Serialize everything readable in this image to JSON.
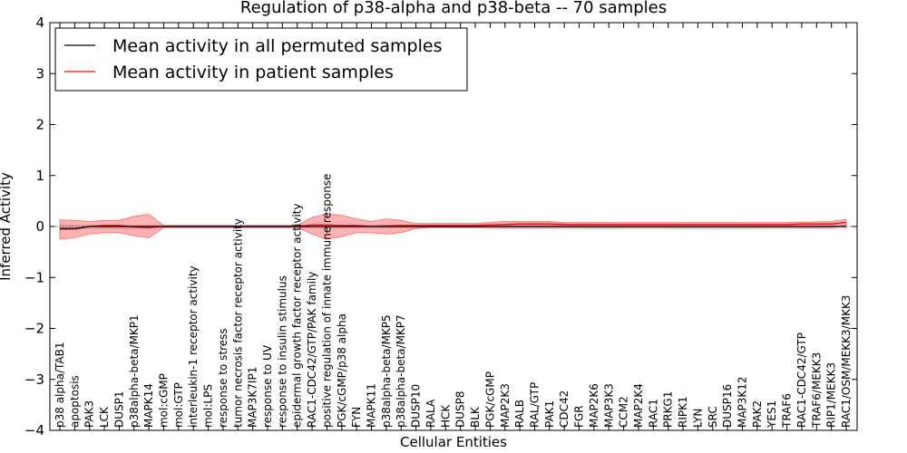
{
  "chart_data": {
    "type": "line",
    "title": "Regulation of p38-alpha and p38-beta -- 70 samples",
    "xlabel": "Cellular Entities",
    "ylabel": "Inferred Activity",
    "ylim": [
      -4,
      4
    ],
    "yticks": [
      -4,
      -3,
      -2,
      -1,
      0,
      1,
      2,
      3,
      4
    ],
    "legend_position": "top-left",
    "categories": [
      "p38 alpha/TAB1",
      "apoptosis",
      "PAK3",
      "LCK",
      "DUSP1",
      "p38alpha-beta/MKP1",
      "MAPK14",
      "mol:cGMP",
      "mol:GTP",
      "interleukin-1 receptor activity",
      "mol:LPS",
      "response to stress",
      "tumor necrosis factor receptor activity",
      "MAP3K7IP1",
      "response to UV",
      "response to insulin stimulus",
      "epidermal growth factor receptor activity",
      "RAC1-CDC42/GTP/PAK family",
      "positive regulation of innate immune response",
      "PGK/cGMP/p38 alpha",
      "FYN",
      "MAPK11",
      "p38alpha-beta/MKP5",
      "p38alpha-beta/MKP7",
      "DUSP10",
      "RALA",
      "HCK",
      "DUSP8",
      "BLK",
      "PGK/cGMP",
      "MAP2K3",
      "RALB",
      "RAL/GTP",
      "PAK1",
      "CDC42",
      "FGR",
      "MAP2K6",
      "MAP3K3",
      "CCM2",
      "MAP2K4",
      "RAC1",
      "PRKG1",
      "RIPK1",
      "LYN",
      "SRC",
      "DUSP16",
      "MAP3K12",
      "PAK2",
      "YES1",
      "TRAF6",
      "RAC1-CDC42/GTP",
      "TRAF6/MEKK3",
      "RIP1/MEKK3",
      "RAC1/OSM/MEKK3/MKK3"
    ],
    "series": [
      {
        "name": "Mean activity in all permuted samples",
        "color": "#000000",
        "values": [
          -0.04,
          -0.04,
          0.0,
          0.0,
          0.0,
          0.0,
          0.0,
          0.0,
          0.0,
          0.0,
          0.0,
          0.0,
          0.0,
          0.0,
          0.0,
          0.0,
          0.0,
          0.0,
          0.0,
          0.0,
          0.0,
          0.0,
          0.0,
          0.0,
          0.0,
          0.0,
          0.0,
          0.0,
          0.0,
          0.0,
          0.0,
          0.0,
          0.0,
          0.0,
          0.0,
          0.0,
          0.0,
          0.0,
          0.0,
          0.0,
          0.0,
          0.0,
          0.0,
          0.0,
          0.0,
          0.0,
          0.0,
          0.0,
          0.0,
          0.0,
          0.0,
          0.0,
          0.0,
          0.0
        ],
        "band_lower": [
          -0.05,
          -0.05,
          -0.04,
          -0.04,
          -0.04,
          -0.04,
          -0.04,
          -0.03,
          -0.03,
          -0.03,
          -0.03,
          -0.03,
          -0.03,
          -0.03,
          -0.03,
          -0.03,
          -0.03,
          -0.03,
          -0.03,
          -0.03,
          -0.03,
          -0.03,
          -0.03,
          -0.03,
          -0.03,
          -0.03,
          -0.03,
          -0.03,
          -0.03,
          -0.04,
          -0.05,
          -0.05,
          -0.04,
          -0.04,
          -0.04,
          -0.04,
          -0.05,
          -0.05,
          -0.04,
          -0.04,
          -0.04,
          -0.04,
          -0.05,
          -0.05,
          -0.06,
          -0.05,
          -0.05,
          -0.04,
          -0.04,
          -0.04,
          -0.04,
          -0.04,
          -0.04,
          -0.04
        ],
        "band_upper": [
          0.03,
          0.03,
          0.03,
          0.03,
          0.03,
          0.03,
          0.03,
          0.03,
          0.03,
          0.03,
          0.03,
          0.03,
          0.03,
          0.03,
          0.03,
          0.03,
          0.03,
          0.03,
          0.03,
          0.03,
          0.03,
          0.03,
          0.03,
          0.03,
          0.03,
          0.03,
          0.03,
          0.03,
          0.03,
          0.03,
          0.03,
          0.03,
          0.03,
          0.03,
          0.03,
          0.03,
          0.03,
          0.03,
          0.03,
          0.03,
          0.03,
          0.03,
          0.03,
          0.03,
          0.03,
          0.03,
          0.03,
          0.03,
          0.03,
          0.03,
          0.03,
          0.03,
          0.03,
          0.03
        ]
      },
      {
        "name": "Mean activity in patient samples",
        "color": "#ff0000",
        "values": [
          -0.05,
          -0.05,
          0.0,
          0.02,
          0.02,
          -0.01,
          -0.02,
          0.0,
          0.0,
          0.0,
          0.0,
          0.0,
          0.0,
          0.0,
          0.0,
          0.0,
          0.0,
          0.03,
          0.03,
          0.02,
          0.02,
          0.0,
          0.01,
          0.02,
          0.02,
          0.02,
          0.02,
          0.02,
          0.02,
          0.03,
          0.04,
          0.05,
          0.05,
          0.05,
          0.04,
          0.04,
          0.04,
          0.04,
          0.04,
          0.04,
          0.04,
          0.04,
          0.04,
          0.04,
          0.04,
          0.04,
          0.04,
          0.04,
          0.04,
          0.04,
          0.05,
          0.05,
          0.05,
          0.08
        ],
        "band_lower": [
          -0.25,
          -0.22,
          -0.15,
          -0.12,
          -0.12,
          -0.18,
          -0.22,
          -0.02,
          -0.02,
          -0.02,
          -0.02,
          -0.02,
          -0.02,
          -0.02,
          -0.02,
          -0.02,
          -0.02,
          -0.15,
          -0.25,
          -0.2,
          -0.12,
          -0.12,
          -0.15,
          -0.12,
          -0.04,
          -0.02,
          -0.02,
          -0.02,
          -0.02,
          -0.02,
          -0.02,
          -0.02,
          -0.02,
          -0.02,
          -0.02,
          -0.02,
          -0.02,
          -0.02,
          -0.02,
          -0.02,
          -0.02,
          -0.02,
          -0.02,
          -0.02,
          -0.02,
          -0.02,
          -0.02,
          -0.02,
          -0.02,
          -0.02,
          -0.02,
          -0.02,
          -0.02,
          0.02
        ],
        "band_upper": [
          0.13,
          0.12,
          0.1,
          0.12,
          0.12,
          0.2,
          0.24,
          0.02,
          0.02,
          0.02,
          0.02,
          0.02,
          0.02,
          0.02,
          0.02,
          0.02,
          0.02,
          0.18,
          0.25,
          0.22,
          0.15,
          0.1,
          0.15,
          0.12,
          0.06,
          0.06,
          0.06,
          0.06,
          0.06,
          0.08,
          0.1,
          0.1,
          0.1,
          0.1,
          0.08,
          0.08,
          0.08,
          0.08,
          0.08,
          0.08,
          0.08,
          0.08,
          0.08,
          0.08,
          0.08,
          0.08,
          0.08,
          0.08,
          0.08,
          0.08,
          0.09,
          0.09,
          0.1,
          0.14
        ]
      }
    ]
  },
  "colors": {
    "red_band": "#ff0000",
    "grey_band": "#aab8d0",
    "reference_line": "#555555"
  }
}
